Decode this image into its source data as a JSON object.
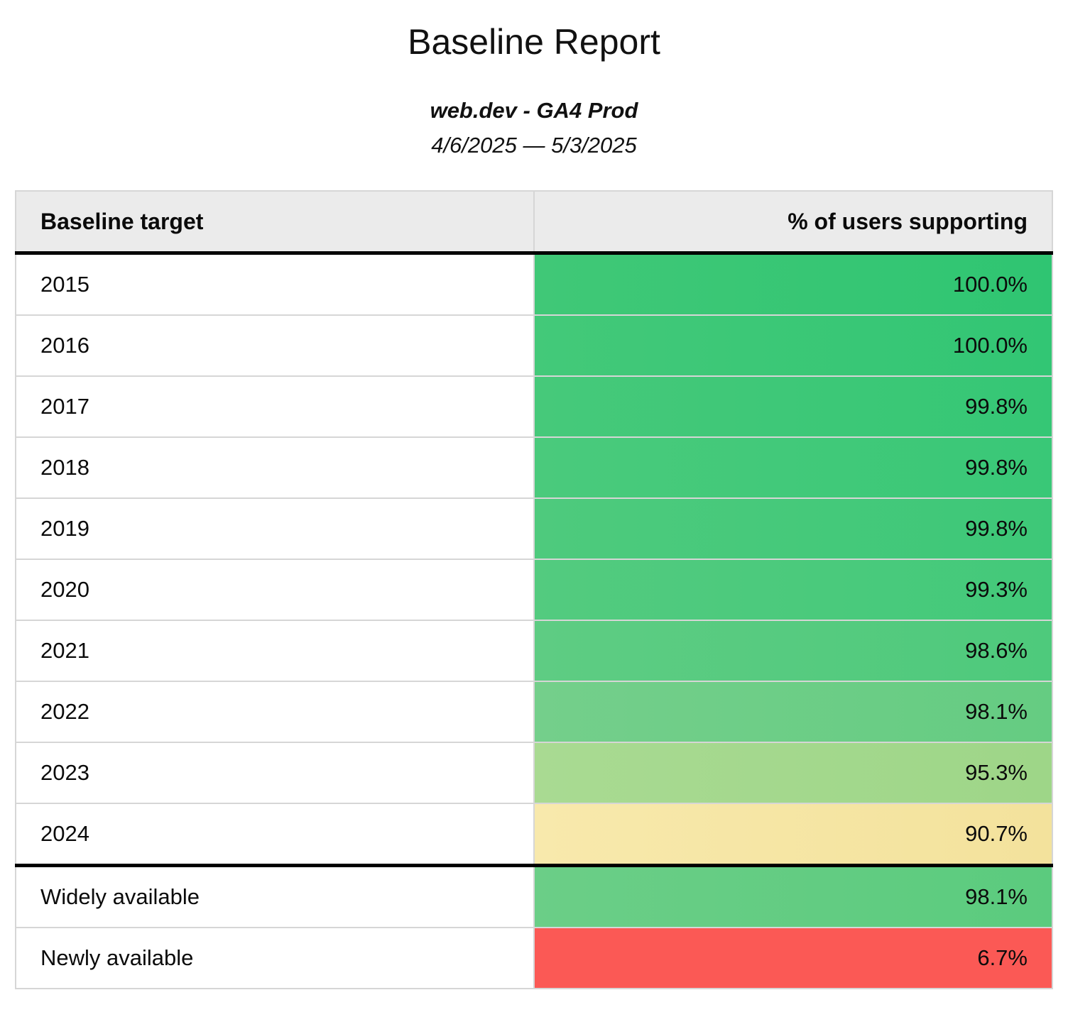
{
  "report": {
    "title": "Baseline Report",
    "property": "web.dev - GA4 Prod",
    "date_range": "4/6/2025 — 5/3/2025"
  },
  "table": {
    "columns": [
      {
        "label": "Baseline target",
        "align": "left"
      },
      {
        "label": "% of users supporting",
        "align": "right"
      }
    ],
    "groups": [
      {
        "name": "yearly-targets",
        "rows": [
          {
            "target": "2015",
            "value": "100.0%",
            "color_left": "#40c877",
            "color_right": "#2fc572"
          },
          {
            "target": "2016",
            "value": "100.0%",
            "color_left": "#43c979",
            "color_right": "#32c674"
          },
          {
            "target": "2017",
            "value": "99.8%",
            "color_left": "#46c97a",
            "color_right": "#35c775"
          },
          {
            "target": "2018",
            "value": "99.8%",
            "color_left": "#4aca7c",
            "color_right": "#39c877"
          },
          {
            "target": "2019",
            "value": "99.8%",
            "color_left": "#4eca7d",
            "color_right": "#3dc878"
          },
          {
            "target": "2020",
            "value": "99.3%",
            "color_left": "#53cb7f",
            "color_right": "#43c97a"
          },
          {
            "target": "2021",
            "value": "98.6%",
            "color_left": "#5ecc83",
            "color_right": "#4eca7c"
          },
          {
            "target": "2022",
            "value": "98.1%",
            "color_left": "#74cf8b",
            "color_right": "#65cc82"
          },
          {
            "target": "2023",
            "value": "95.3%",
            "color_left": "#a9da92",
            "color_right": "#9ed688"
          },
          {
            "target": "2024",
            "value": "90.7%",
            "color_left": "#f8e9ac",
            "color_right": "#f3e29c"
          }
        ]
      },
      {
        "name": "availability-levels",
        "rows": [
          {
            "target": "Widely available",
            "value": "98.1%",
            "color_left": "#6bce87",
            "color_right": "#5bcb7e"
          },
          {
            "target": "Newly available",
            "value": "6.7%",
            "color_left": "#fb5955",
            "color_right": "#fb5955"
          }
        ]
      }
    ]
  },
  "colors": {
    "page_background": "#ffffff",
    "header_background": "#ebebeb",
    "cell_border": "#d6d6d6",
    "section_divider": "#000000",
    "text": "#0b0b0b",
    "status_red": "#fb5955",
    "status_yellow": "#f5e6a4",
    "status_green": "#38c777"
  },
  "chart_data": {
    "type": "table",
    "title": "Baseline Report",
    "subtitle": "web.dev - GA4 Prod",
    "date_range": "4/6/2025 — 5/3/2025",
    "columns": [
      "Baseline target",
      "% of users supporting"
    ],
    "rows": [
      {
        "target": "2015",
        "percent_users_supporting": 100.0
      },
      {
        "target": "2016",
        "percent_users_supporting": 100.0
      },
      {
        "target": "2017",
        "percent_users_supporting": 99.8
      },
      {
        "target": "2018",
        "percent_users_supporting": 99.8
      },
      {
        "target": "2019",
        "percent_users_supporting": 99.8
      },
      {
        "target": "2020",
        "percent_users_supporting": 99.3
      },
      {
        "target": "2021",
        "percent_users_supporting": 98.6
      },
      {
        "target": "2022",
        "percent_users_supporting": 98.1
      },
      {
        "target": "2023",
        "percent_users_supporting": 95.3
      },
      {
        "target": "2024",
        "percent_users_supporting": 90.7
      },
      {
        "target": "Widely available",
        "percent_users_supporting": 98.1
      },
      {
        "target": "Newly available",
        "percent_users_supporting": 6.7
      }
    ],
    "layout_hints": {
      "value_color_scale": "red-yellow-green heat scale per cell",
      "value_alignment": "right",
      "section_break_after_row": "2024"
    }
  }
}
